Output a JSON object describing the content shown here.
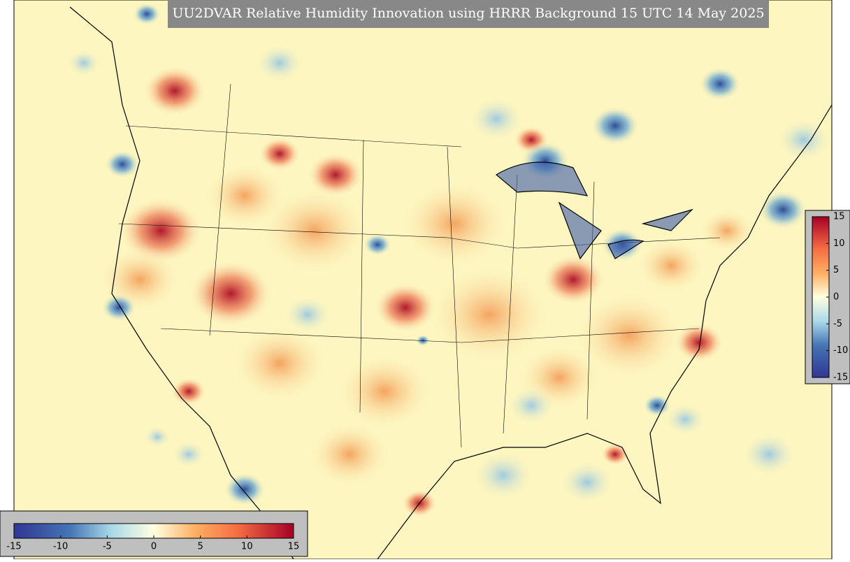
{
  "title": "UU2DVAR Relative Humidity Innovation using HRRR Background 15 UTC 14 May 2025",
  "colorbars": [
    {
      "orientation": "horizontal",
      "range": [
        -15,
        15
      ],
      "ticks": [
        -15,
        -10,
        -5,
        0,
        5,
        10,
        15
      ]
    },
    {
      "orientation": "vertical",
      "range": [
        -15,
        15
      ],
      "ticks": [
        -15,
        -10,
        -5,
        0,
        5,
        10,
        15
      ]
    }
  ]
}
